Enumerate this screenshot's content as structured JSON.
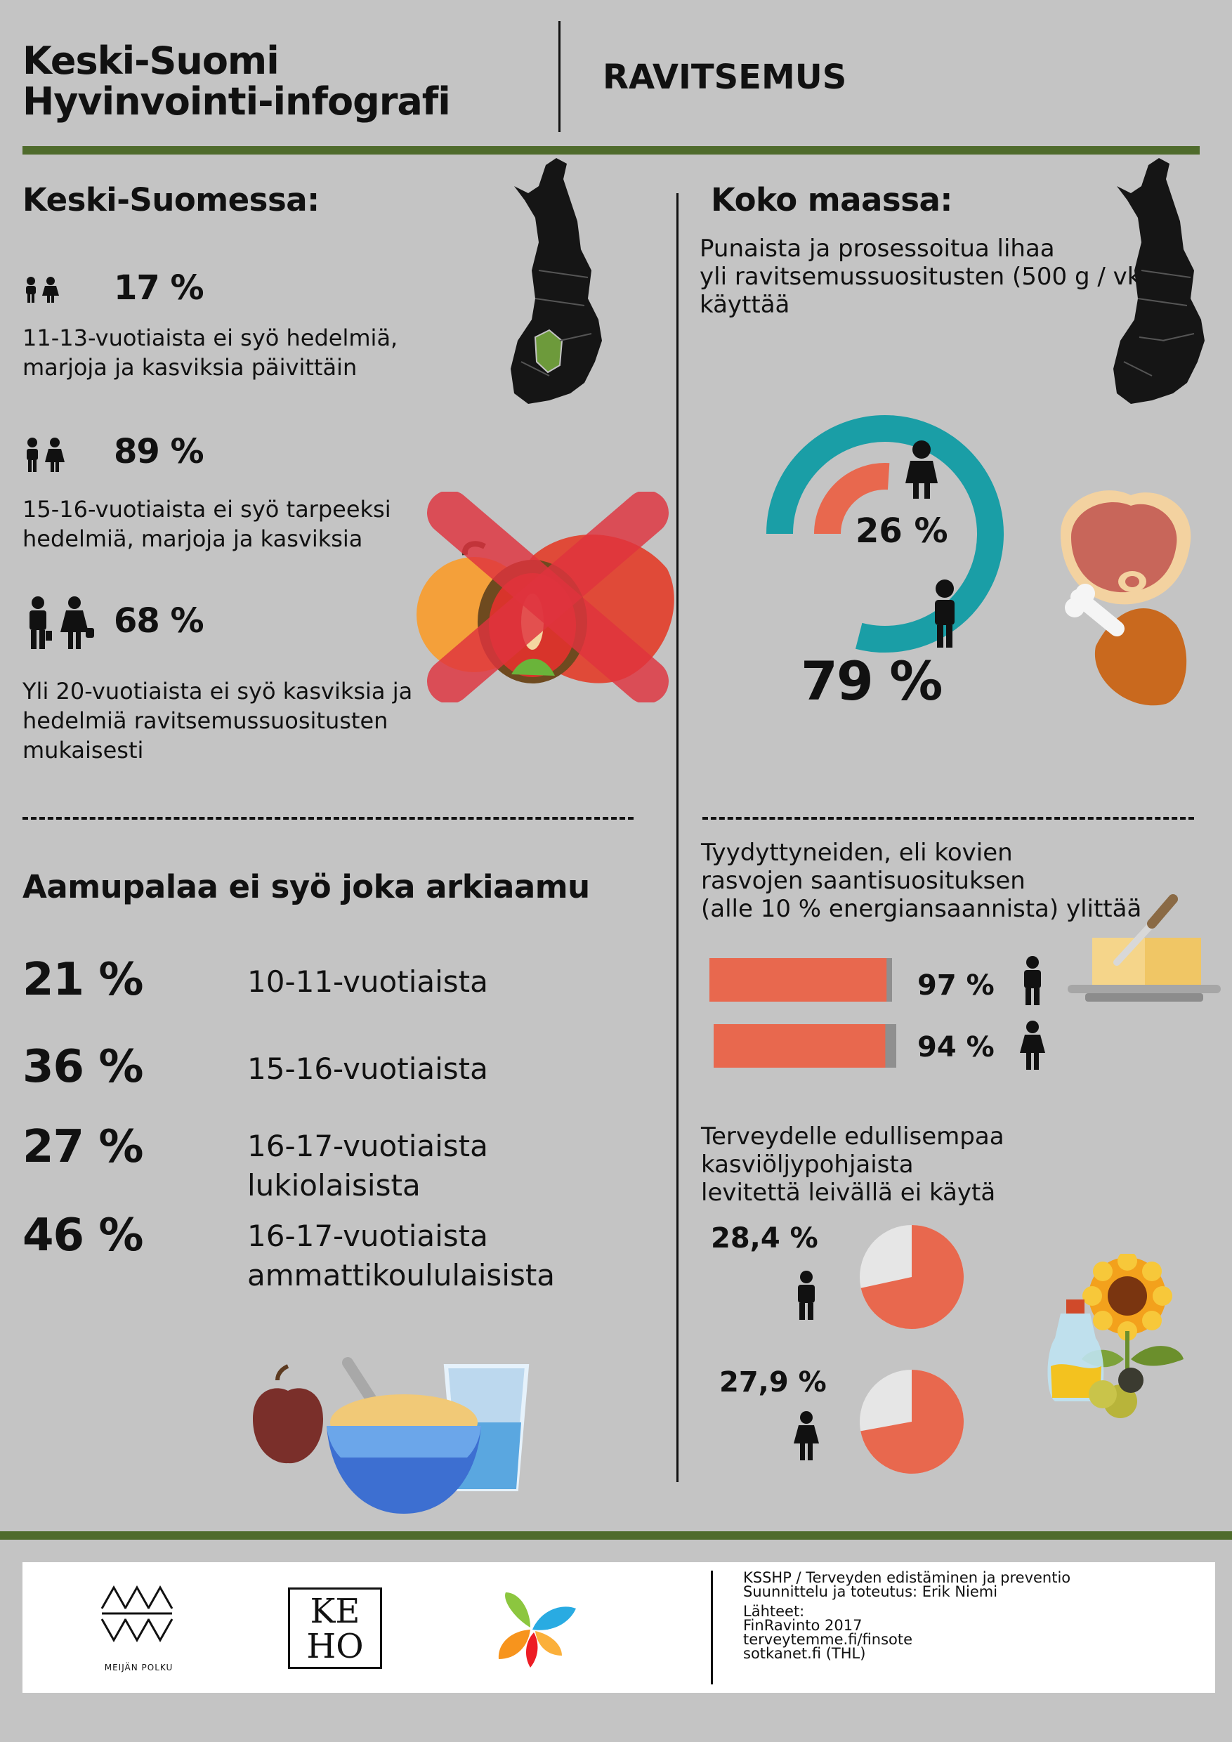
{
  "header": {
    "title_line1": "Keski-Suomi",
    "title_line2": "Hyvinvointi-infografi",
    "topic": "RAVITSEMUS"
  },
  "left": {
    "heading": "Keski-Suomessa:",
    "stats": [
      {
        "pct": "17 %",
        "text_line1": "11-13-vuotiaista ei syö hedelmiä,",
        "text_line2": "marjoja ja kasviksia päivittäin",
        "text_line3": ""
      },
      {
        "pct": "89 %",
        "text_line1": "15-16-vuotiaista ei syö tarpeeksi",
        "text_line2": "hedelmiä, marjoja ja kasviksia",
        "text_line3": ""
      },
      {
        "pct": "68 %",
        "text_line1": "Yli 20-vuotiaista ei syö kasviksia ja",
        "text_line2": "hedelmiä ravitsemussuositusten",
        "text_line3": "mukaisesti"
      }
    ],
    "breakfast_heading": "Aamupalaa ei syö joka arkiaamu",
    "breakfast": [
      {
        "pct": "21 %",
        "line1": "10-11-vuotiaista",
        "line2": ""
      },
      {
        "pct": "36 %",
        "line1": "15-16-vuotiaista",
        "line2": ""
      },
      {
        "pct": "27 %",
        "line1": "16-17-vuotiaista",
        "line2": "lukiolaisista"
      },
      {
        "pct": "46 %",
        "line1": "16-17-vuotiaista",
        "line2": "ammattikoululaisista"
      }
    ]
  },
  "right": {
    "heading": "Koko maassa:",
    "meat_line1": "Punaista ja prosessoitua lihaa",
    "meat_line2": "yli ravitsemussuositusten (500 g / vko)",
    "meat_line3": "käyttää",
    "meat_women_pct": "26 %",
    "meat_men_pct": "79 %",
    "fat_line1": "Tyydyttyneiden, eli kovien",
    "fat_line2": "rasvojen saantisuosituksen",
    "fat_line3": "(alle 10 % energiansaannista) ylittää",
    "fat_men_pct": "97 %",
    "fat_women_pct": "94 %",
    "oil_line1": "Terveydelle edullisempaa",
    "oil_line2": "kasviöljypohjaista",
    "oil_line3": "levitettä leivällä ei käytä",
    "oil_men_pct": "28,4 %",
    "oil_women_pct": "27,9 %"
  },
  "values": {
    "meat_women": 26,
    "meat_men": 79,
    "fat_men": 97,
    "fat_women": 94,
    "oil_men": 28.4,
    "oil_women": 27.9
  },
  "colors": {
    "background": "#c4c4c4",
    "accent_green": "#4f6b2c",
    "teal": "#1a9ea6",
    "salmon": "#e8684e",
    "light_grey": "#e6e6e6"
  },
  "footer": {
    "logo1_text": "MEIJÄN POLKU",
    "logo2_line1": "KE",
    "logo2_line2": "HO",
    "line1": "KSSHP / Terveyden edistäminen ja preventio",
    "line2": "Suunnittelu ja toteutus: Erik Niemi",
    "line3": "Lähteet:",
    "line4": "FinRavinto 2017",
    "line5": "terveytemme.fi/finsote",
    "line6": "sotkanet.fi (THL)"
  }
}
